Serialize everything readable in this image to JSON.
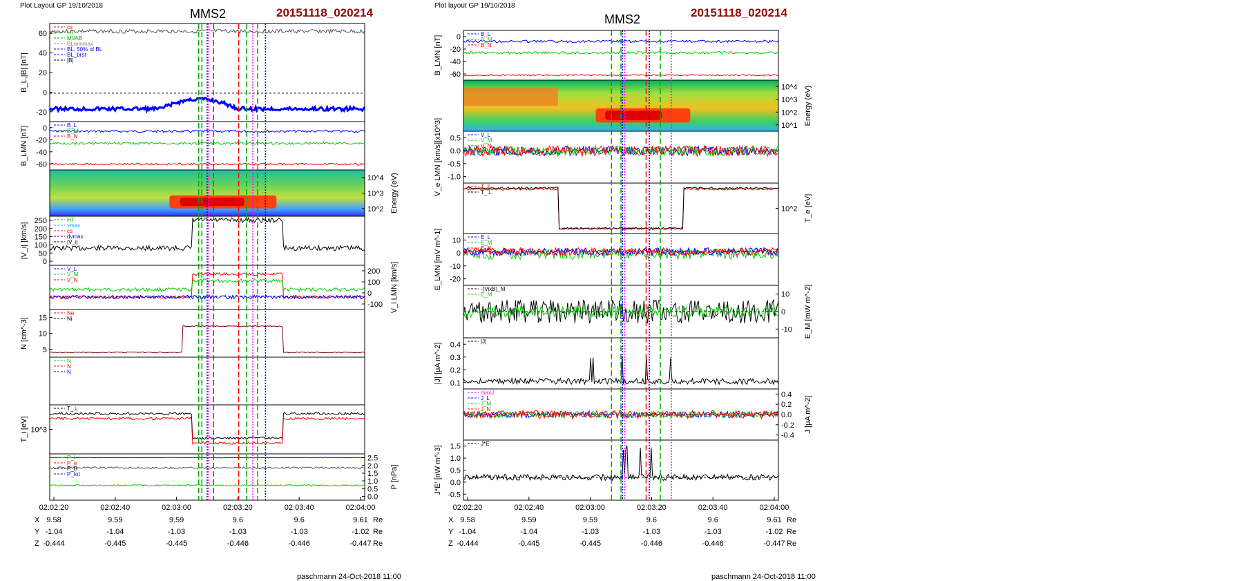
{
  "left": {
    "header_left": "Plot Layout GP 19/10/2018",
    "spacecraft": "MMS2",
    "event_id": "20151118_020214",
    "footer": "paschmann 24-Oct-2018 11:00",
    "time_ticks": [
      "02:02:20",
      "02:02:40",
      "02:03:00",
      "02:03:20",
      "02:03:40",
      "02:04:00"
    ],
    "ephemeris": [
      {
        "name": "X",
        "values": [
          "9.58",
          "9.59",
          "9.59",
          "9.6",
          "9.6",
          "9.61"
        ],
        "unit": "Re"
      },
      {
        "name": "Y",
        "values": [
          "-1.04",
          "-1.04",
          "-1.03",
          "-1.03",
          "-1.03",
          "-1.02"
        ],
        "unit": "Re"
      },
      {
        "name": "Z",
        "values": [
          "-0.444",
          "-0.445",
          "-0.445",
          "-0.446",
          "-0.446",
          "-0.447"
        ],
        "unit": "Re"
      }
    ],
    "vlines": [
      {
        "t": 0.473,
        "color": "#00aa00",
        "style": "dash"
      },
      {
        "t": 0.483,
        "color": "#00aa00",
        "style": "dash"
      },
      {
        "t": 0.5,
        "color": "#0000ff",
        "style": "dot"
      },
      {
        "t": 0.505,
        "color": "#ff00ff",
        "style": "dot"
      },
      {
        "t": 0.52,
        "color": "#ff0000",
        "style": "dash"
      },
      {
        "t": 0.6,
        "color": "#ff0000",
        "style": "dash"
      },
      {
        "t": 0.625,
        "color": "#00aa00",
        "style": "dash"
      },
      {
        "t": 0.645,
        "color": "#ff00ff",
        "style": "dot"
      },
      {
        "t": 0.66,
        "color": "#00aa00",
        "style": "dash"
      },
      {
        "t": 0.685,
        "color": "#0000ff",
        "style": "dot"
      }
    ],
    "panels": [
      {
        "ylabel": "B_L,|B| [nT]",
        "side": "left",
        "yticks": [
          "60",
          "40",
          "20",
          "0",
          "-20"
        ],
        "zero": 0.71,
        "legend": [
          {
            "t": "cs",
            "c": "#ff0000"
          },
          {
            "t": "HT",
            "c": "#00aa00"
          },
          {
            "t": "MVAB",
            "c": "#00aa00"
          },
          {
            "t": "BLminmax",
            "c": "#888888"
          },
          {
            "t": "BL, 50% of BL",
            "c": "#0000ff"
          },
          {
            "t": "BL_brst",
            "c": "#0000ff"
          },
          {
            "t": "|B|",
            "c": "#000000"
          }
        ],
        "traces": [
          {
            "c": "#555555",
            "base": 0.08,
            "amp": 0.04,
            "seed": 3
          },
          {
            "c": "#0000ff",
            "base": 0.87,
            "amp": 0.04,
            "seed": 5,
            "w": 3,
            "dip": 0.45
          }
        ]
      },
      {
        "ylabel": "B_LMN [nT]",
        "side": "left",
        "yticks": [
          "0",
          "-20",
          "-40",
          "-60"
        ],
        "legend": [
          {
            "t": "B_L",
            "c": "#0000ff"
          },
          {
            "t": "B_M",
            "c": "#00cc00"
          },
          {
            "t": "B_N",
            "c": "#ff0000"
          }
        ],
        "traces": [
          {
            "c": "#0000ff",
            "base": 0.2,
            "amp": 0.05,
            "seed": 7
          },
          {
            "c": "#00cc00",
            "base": 0.45,
            "amp": 0.05,
            "seed": 9
          },
          {
            "c": "#ff0000",
            "base": 0.88,
            "amp": 0.04,
            "seed": 11
          }
        ]
      },
      {
        "ylabel": "Energy (eV)",
        "side": "right",
        "yticks": [
          "10^4",
          "10^3",
          "10^2"
        ],
        "spectrogram": true,
        "hot": [
          0.38,
          0.72
        ]
      },
      {
        "ylabel": "|V_i| [km/s]",
        "side": "left",
        "yticks": [
          "250",
          "200",
          "150",
          "100",
          "50",
          "0"
        ],
        "legend": [
          {
            "t": "HT",
            "c": "#00aa00"
          },
          {
            "t": "vmax",
            "c": "#00aaff"
          },
          {
            "t": "cs",
            "c": "#ff0000"
          },
          {
            "t": "dvmax",
            "c": "#0000ff"
          },
          {
            "t": "|V_i|",
            "c": "#000000"
          }
        ],
        "traces": [
          {
            "c": "#000000",
            "base": 0.65,
            "amp": 0.1,
            "seed": 13,
            "plateau": [
              0.45,
              0.74,
              0.08
            ]
          }
        ]
      },
      {
        "ylabel": "V_i LMN [km/s]",
        "side": "right",
        "yticks": [
          "200",
          "100",
          "0",
          "-100"
        ],
        "zero": 0.7,
        "legend": [
          {
            "t": "V_L",
            "c": "#0000ff"
          },
          {
            "t": "V_M",
            "c": "#00cc00"
          },
          {
            "t": "V_N",
            "c": "#ff0000"
          }
        ],
        "traces": [
          {
            "c": "#ff0000",
            "base": 0.72,
            "amp": 0.06,
            "seed": 15,
            "plateau": [
              0.45,
              0.74,
              0.2
            ]
          },
          {
            "c": "#00cc00",
            "base": 0.55,
            "amp": 0.08,
            "seed": 17,
            "plateau": [
              0.45,
              0.74,
              0.35
            ]
          },
          {
            "c": "#0000ff",
            "base": 0.72,
            "amp": 0.08,
            "seed": 19
          }
        ]
      },
      {
        "ylabel": "N [cm^-3]",
        "side": "left",
        "yticks": [
          "15",
          "10",
          "5"
        ],
        "legend": [
          {
            "t": "Ne",
            "c": "#ff0000"
          },
          {
            "t": "Ni",
            "c": "#000000"
          }
        ],
        "traces": [
          {
            "c": "#800000",
            "base": 0.9,
            "amp": 0.02,
            "seed": 21,
            "plateau": [
              0.42,
              0.74,
              0.35
            ]
          }
        ]
      },
      {
        "ylabel": "",
        "side": "left",
        "yticks": [],
        "legend": [
          {
            "t": "N",
            "c": "#00cc00"
          },
          {
            "t": "N",
            "c": "#ff0000"
          },
          {
            "t": "N",
            "c": "#0000ff"
          }
        ],
        "traces": []
      },
      {
        "ylabel": "T_i [eV]",
        "side": "left",
        "yticks": [
          "10^3"
        ],
        "legend": [
          {
            "t": "T_⊥",
            "c": "#000000"
          }
        ],
        "traces": [
          {
            "c": "#000000",
            "base": 0.18,
            "amp": 0.05,
            "seed": 23,
            "dipzone": [
              0.45,
              0.74,
              0.68
            ]
          },
          {
            "c": "#ff0000",
            "base": 0.28,
            "amp": 0.05,
            "seed": 25,
            "dipzone": [
              0.45,
              0.74,
              0.78
            ]
          }
        ]
      },
      {
        "ylabel": "P [nPa]",
        "side": "right",
        "yticks": [
          "2.5",
          "2.0",
          "1.5",
          "1.0",
          "0.5",
          "0.0"
        ],
        "legend": [
          {
            "t": "P_i",
            "c": "#00cc00"
          },
          {
            "t": "P_e",
            "c": "#ff0000"
          },
          {
            "t": "P_B",
            "c": "#000000"
          },
          {
            "t": "P_tot",
            "c": "#0000ff"
          }
        ],
        "traces": [
          {
            "c": "#0000ff",
            "base": 0.08,
            "amp": 0.01,
            "seed": 27
          },
          {
            "c": "#555555",
            "base": 0.3,
            "amp": 0.04,
            "seed": 29
          },
          {
            "c": "#00cc00",
            "base": 0.68,
            "amp": 0.03,
            "seed": 31
          }
        ]
      }
    ]
  },
  "right": {
    "header_left": "Plot layout GP 19/10/2018",
    "spacecraft": "MMS2",
    "event_id": "20151118_020214",
    "footer": "paschmann 24-Oct-2018 11:00",
    "time_ticks": [
      "02:02:20",
      "02:02:40",
      "02:03:00",
      "02:03:20",
      "02:03:40",
      "02:04:00"
    ],
    "ephemeris": [
      {
        "name": "X",
        "values": [
          "9.58",
          "9.59",
          "9.59",
          "9.6",
          "9.6",
          "9.61"
        ],
        "unit": "Re"
      },
      {
        "name": "Y",
        "values": [
          "-1.04",
          "-1.04",
          "-1.03",
          "-1.03",
          "-1.03",
          "-1.02"
        ],
        "unit": "Re"
      },
      {
        "name": "Z",
        "values": [
          "-0.444",
          "-0.445",
          "-0.445",
          "-0.446",
          "-0.446",
          "-0.447"
        ],
        "unit": "Re"
      }
    ],
    "vlines": [
      {
        "t": 0.47,
        "color": "#00aa00",
        "style": "dash"
      },
      {
        "t": 0.5,
        "color": "#00aa00",
        "style": "dash"
      },
      {
        "t": 0.505,
        "color": "#0000ff",
        "style": "dot"
      },
      {
        "t": 0.512,
        "color": "#ff00ff",
        "style": "dot"
      },
      {
        "t": 0.58,
        "color": "#ff0000",
        "style": "dash"
      },
      {
        "t": 0.59,
        "color": "#0000ff",
        "style": "dot"
      },
      {
        "t": 0.625,
        "color": "#00aa00",
        "style": "dash"
      },
      {
        "t": 0.66,
        "color": "#ff00ff",
        "style": "dot"
      }
    ],
    "panels": [
      {
        "ylabel": "B_LMN [nT]",
        "side": "left",
        "yticks": [
          "0",
          "-20",
          "-40",
          "-60"
        ],
        "legend": [
          {
            "t": "B_L",
            "c": "#0000ff"
          },
          {
            "t": "B_M",
            "c": "#00cc00"
          },
          {
            "t": "B_N",
            "c": "#ff0000"
          }
        ],
        "traces": [
          {
            "c": "#0000ff",
            "base": 0.22,
            "amp": 0.05,
            "seed": 33
          },
          {
            "c": "#00cc00",
            "base": 0.45,
            "amp": 0.05,
            "seed": 35
          },
          {
            "c": "#ff0000",
            "base": 0.9,
            "amp": 0.03,
            "seed": 37
          }
        ]
      },
      {
        "ylabel": "Energy (eV)",
        "side": "right",
        "yticks": [
          "10^4",
          "10^3",
          "10^2",
          "10^1"
        ],
        "spectrogram": true,
        "hot": [
          0.42,
          0.72
        ],
        "mode": "electron"
      },
      {
        "ylabel": "V_e LMN [km/s][x10^3]",
        "side": "left",
        "yticks": [
          "0.5",
          "0.0",
          "-0.5",
          "-1.0"
        ],
        "zero": 0.38,
        "legend": [
          {
            "t": "V_L",
            "c": "#0000ff"
          },
          {
            "t": "V_M",
            "c": "#00cc00"
          },
          {
            "t": "V_N",
            "c": "#ff0000"
          }
        ],
        "traces": [
          {
            "c": "#0000ff",
            "base": 0.38,
            "amp": 0.18,
            "seed": 39
          },
          {
            "c": "#00cc00",
            "base": 0.38,
            "amp": 0.2,
            "seed": 41
          },
          {
            "c": "#ff0000",
            "base": 0.38,
            "amp": 0.2,
            "seed": 43
          }
        ]
      },
      {
        "ylabel": "T_e [eV]",
        "side": "right",
        "yticks": [
          "10^2"
        ],
        "legend": [
          {
            "t": "T_∥",
            "c": "#ff0000"
          },
          {
            "t": "T_⊥",
            "c": "#000000"
          }
        ],
        "traces": [
          {
            "c": "#ff0000",
            "base": 0.12,
            "amp": 0.04,
            "seed": 45,
            "dipzone": [
              0.3,
              0.7,
              0.9
            ]
          },
          {
            "c": "#000000",
            "base": 0.1,
            "amp": 0.04,
            "seed": 47,
            "dipzone": [
              0.3,
              0.7,
              0.9
            ]
          }
        ]
      },
      {
        "ylabel": "E_LMN [mV m^-1]",
        "side": "left",
        "yticks": [
          "10",
          "0",
          "-10",
          "-20"
        ],
        "zero": 0.35,
        "legend": [
          {
            "t": "E_L",
            "c": "#0000ff"
          },
          {
            "t": "E_M",
            "c": "#00cc00"
          },
          {
            "t": "E_N",
            "c": "#ff0000"
          }
        ],
        "traces": [
          {
            "c": "#00cc00",
            "base": 0.4,
            "amp": 0.2,
            "seed": 49
          },
          {
            "c": "#0000ff",
            "base": 0.35,
            "amp": 0.15,
            "seed": 51
          },
          {
            "c": "#ff0000",
            "base": 0.35,
            "amp": 0.15,
            "seed": 53
          }
        ]
      },
      {
        "ylabel": "E_M [mW m^-2]",
        "side": "right",
        "yticks": [
          "10",
          "0",
          "-10"
        ],
        "zero": 0.5,
        "legend": [
          {
            "t": "-(VixB)_M",
            "c": "#000000"
          },
          {
            "t": "E_M",
            "c": "#00cc00"
          }
        ],
        "traces": [
          {
            "c": "#000000",
            "base": 0.5,
            "amp": 0.45,
            "seed": 55
          },
          {
            "c": "#00cc00",
            "base": 0.5,
            "amp": 0.22,
            "seed": 57
          }
        ]
      },
      {
        "ylabel": "|J| [μA m^-2]",
        "side": "left",
        "yticks": [
          "0.4",
          "0.3",
          "0.2",
          "0.1"
        ],
        "legend": [
          {
            "t": "|J|",
            "c": "#000000"
          }
        ],
        "traces": [
          {
            "c": "#000000",
            "base": 0.85,
            "amp": 0.12,
            "seed": 59,
            "spike": [
              0.4,
              0.7
            ]
          }
        ]
      },
      {
        "ylabel": "J [μA m^-2]",
        "side": "right",
        "yticks": [
          "0.4",
          "0.2",
          "0.0",
          "-0.2",
          "-0.4"
        ],
        "zero": 0.5,
        "legend": [
          {
            "t": "maxJ",
            "c": "#ff00ff"
          },
          {
            "t": "J_L",
            "c": "#0000ff"
          },
          {
            "t": "J_M",
            "c": "#00cc00"
          },
          {
            "t": "J_N",
            "c": "#ff0000"
          }
        ],
        "traces": [
          {
            "c": "#0000ff",
            "base": 0.5,
            "amp": 0.12,
            "seed": 61
          },
          {
            "c": "#00cc00",
            "base": 0.5,
            "amp": 0.12,
            "seed": 63
          },
          {
            "c": "#ff0000",
            "base": 0.5,
            "amp": 0.16,
            "seed": 65
          }
        ]
      },
      {
        "ylabel": "J*E' [nW m^-3]",
        "side": "left",
        "yticks": [
          "1.5",
          "1.0",
          "0.5",
          "0.0",
          "-0.5"
        ],
        "zero": 0.62,
        "legend": [
          {
            "t": "J*E'",
            "c": "#000000"
          }
        ],
        "traces": [
          {
            "c": "#000000",
            "base": 0.62,
            "amp": 0.1,
            "seed": 67,
            "spike": [
              0.4,
              0.6
            ]
          }
        ]
      }
    ]
  }
}
